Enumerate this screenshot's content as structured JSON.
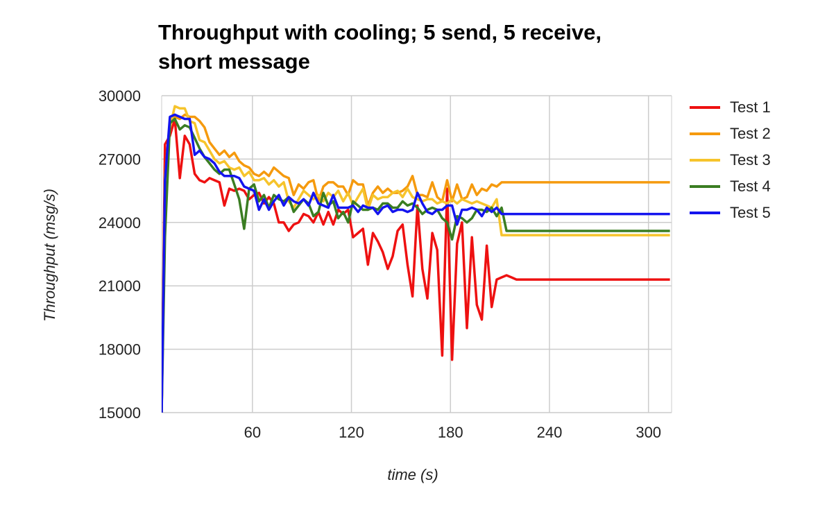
{
  "chart_data": {
    "type": "line",
    "title_line1": "Throughput with cooling; 5 send, 5 receive,",
    "title_line2": "short message",
    "xlabel": "time (s)",
    "ylabel": "Throughput (msg/s)",
    "xlim": [
      5,
      314
    ],
    "ylim": [
      15000,
      30000
    ],
    "x_ticks": [
      60,
      120,
      180,
      240,
      300
    ],
    "y_ticks": [
      15000,
      18000,
      21000,
      24000,
      27000,
      30000
    ],
    "grid": true,
    "legend_position": "right",
    "x": [
      5,
      7,
      10,
      13,
      16,
      19,
      22,
      25,
      28,
      31,
      34,
      37,
      40,
      43,
      46,
      49,
      52,
      55,
      58,
      61,
      64,
      67,
      70,
      73,
      76,
      79,
      82,
      85,
      88,
      91,
      94,
      97,
      100,
      103,
      106,
      109,
      112,
      115,
      118,
      121,
      124,
      127,
      130,
      133,
      136,
      139,
      142,
      145,
      148,
      151,
      154,
      157,
      160,
      163,
      166,
      169,
      172,
      175,
      178,
      181,
      184,
      187,
      190,
      193,
      196,
      199,
      202,
      205,
      208,
      211,
      214,
      217,
      220,
      223,
      226,
      229,
      232,
      235,
      238,
      241,
      244,
      247,
      250,
      253,
      256,
      259,
      262,
      265,
      268,
      271,
      274,
      277,
      280,
      283,
      286,
      289,
      292,
      295,
      298,
      301,
      304,
      307,
      310,
      313
    ],
    "series": [
      {
        "name": "Test 1",
        "color": "#ee1111",
        "values": [
          15000,
          27700,
          28100,
          28900,
          26100,
          28100,
          27700,
          26300,
          26000,
          25900,
          26100,
          26000,
          25900,
          24800,
          25600,
          25500,
          25600,
          25500,
          25100,
          25300,
          25400,
          24900,
          25200,
          24900,
          24000,
          24000,
          23600,
          23900,
          24000,
          24400,
          24300,
          24000,
          24500,
          23900,
          24500,
          23900,
          24600,
          24400,
          24600,
          23300,
          23500,
          23700,
          22000,
          23500,
          23100,
          22600,
          21800,
          22400,
          23600,
          23900,
          22000,
          20500,
          24800,
          21800,
          20400,
          23500,
          22700,
          17700,
          25600,
          17500,
          23000,
          24000,
          19000,
          23300,
          20100,
          19400,
          22900,
          20000,
          21300,
          21400,
          21500,
          21400,
          21300,
          21300,
          21300,
          21300,
          21300,
          21300,
          21300,
          21300,
          21300,
          21300,
          21300,
          21300,
          21300,
          21300,
          21300,
          21300,
          21300,
          21300,
          21300,
          21300,
          21300,
          21300,
          21300,
          21300,
          21300,
          21300,
          21300,
          21300,
          21300,
          21300,
          21300,
          21300
        ]
      },
      {
        "name": "Test 2",
        "color": "#f59a0e",
        "values": [
          15000,
          26200,
          28700,
          29000,
          28900,
          29100,
          29000,
          29000,
          28800,
          28500,
          27800,
          27500,
          27200,
          27400,
          27100,
          27300,
          26900,
          26700,
          26600,
          26300,
          26200,
          26400,
          26200,
          26600,
          26400,
          26200,
          26100,
          25300,
          25800,
          25600,
          25900,
          26000,
          25000,
          25700,
          25900,
          25900,
          25700,
          25700,
          25300,
          26000,
          25800,
          25800,
          24800,
          25400,
          25700,
          25400,
          25600,
          25400,
          25400,
          25500,
          25700,
          26200,
          25300,
          25300,
          25200,
          25900,
          25200,
          25000,
          26000,
          25000,
          25800,
          25100,
          25200,
          25800,
          25300,
          25600,
          25500,
          25800,
          25700,
          25900,
          25900,
          25900,
          25900,
          25900,
          25900,
          25900,
          25900,
          25900,
          25900,
          25900,
          25900,
          25900,
          25900,
          25900,
          25900,
          25900,
          25900,
          25900,
          25900,
          25900,
          25900,
          25900,
          25900,
          25900,
          25900,
          25900,
          25900,
          25900,
          25900,
          25900,
          25900,
          25900,
          25900,
          25900
        ]
      },
      {
        "name": "Test 3",
        "color": "#f6c42c",
        "values": [
          15000,
          26000,
          28500,
          29500,
          29400,
          29400,
          28800,
          28700,
          27900,
          27800,
          27400,
          27000,
          26800,
          26900,
          26600,
          26500,
          26600,
          26200,
          26400,
          26000,
          26000,
          26100,
          25800,
          26000,
          25700,
          25900,
          25000,
          24700,
          25100,
          25500,
          25300,
          25100,
          25300,
          25000,
          25400,
          25200,
          25500,
          25000,
          25400,
          24800,
          25200,
          25600,
          24600,
          25300,
          25100,
          25200,
          25200,
          25400,
          25500,
          25200,
          25600,
          25200,
          25100,
          25000,
          25100,
          25100,
          24900,
          25000,
          24900,
          25100,
          24900,
          25100,
          25000,
          24900,
          25000,
          24900,
          24800,
          24700,
          25100,
          23400,
          23400,
          23400,
          23400,
          23400,
          23400,
          23400,
          23400,
          23400,
          23400,
          23400,
          23400,
          23400,
          23400,
          23400,
          23400,
          23400,
          23400,
          23400,
          23400,
          23400,
          23400,
          23400,
          23400,
          23400,
          23400,
          23400,
          23400,
          23400,
          23400,
          23400,
          23400,
          23400,
          23400,
          23400
        ]
      },
      {
        "name": "Test 4",
        "color": "#3a7d22",
        "values": [
          15000,
          23300,
          28700,
          28900,
          28400,
          28600,
          28500,
          28000,
          27500,
          27100,
          26800,
          26500,
          26300,
          26500,
          26500,
          25800,
          25100,
          23700,
          25600,
          25800,
          25000,
          25300,
          24700,
          25300,
          25100,
          25000,
          25200,
          24500,
          24800,
          25100,
          24900,
          24300,
          24500,
          25400,
          24800,
          25000,
          24200,
          24500,
          24000,
          25000,
          24800,
          24600,
          24600,
          24700,
          24600,
          24900,
          24900,
          24700,
          24700,
          25000,
          24800,
          24900,
          24700,
          24400,
          24600,
          24700,
          24600,
          24200,
          24000,
          23200,
          24300,
          24200,
          24000,
          24200,
          24600,
          24600,
          24500,
          24700,
          24300,
          24700,
          23600,
          23600,
          23600,
          23600,
          23600,
          23600,
          23600,
          23600,
          23600,
          23600,
          23600,
          23600,
          23600,
          23600,
          23600,
          23600,
          23600,
          23600,
          23600,
          23600,
          23600,
          23600,
          23600,
          23600,
          23600,
          23600,
          23600,
          23600,
          23600,
          23600,
          23600,
          23600,
          23600,
          23600
        ]
      },
      {
        "name": "Test 5",
        "color": "#1414ee",
        "values": [
          15000,
          26000,
          29000,
          29100,
          29000,
          28900,
          28900,
          27200,
          27400,
          27100,
          27000,
          26800,
          26400,
          26200,
          26200,
          26200,
          26100,
          25700,
          25600,
          25500,
          24600,
          25100,
          24600,
          25000,
          25300,
          24800,
          25200,
          25000,
          24900,
          25100,
          24800,
          25400,
          24900,
          24800,
          24700,
          25300,
          24700,
          24700,
          24700,
          24800,
          24500,
          24800,
          24700,
          24700,
          24400,
          24700,
          24800,
          24500,
          24600,
          24600,
          24500,
          24600,
          25400,
          24900,
          24500,
          24400,
          24600,
          24600,
          24800,
          24800,
          23900,
          24600,
          24600,
          24700,
          24600,
          24300,
          24700,
          24500,
          24700,
          24400,
          24400,
          24400,
          24400,
          24400,
          24400,
          24400,
          24400,
          24400,
          24400,
          24400,
          24400,
          24400,
          24400,
          24400,
          24400,
          24400,
          24400,
          24400,
          24400,
          24400,
          24400,
          24400,
          24400,
          24400,
          24400,
          24400,
          24400,
          24400,
          24400,
          24400,
          24400,
          24400,
          24400,
          24400
        ]
      }
    ]
  }
}
